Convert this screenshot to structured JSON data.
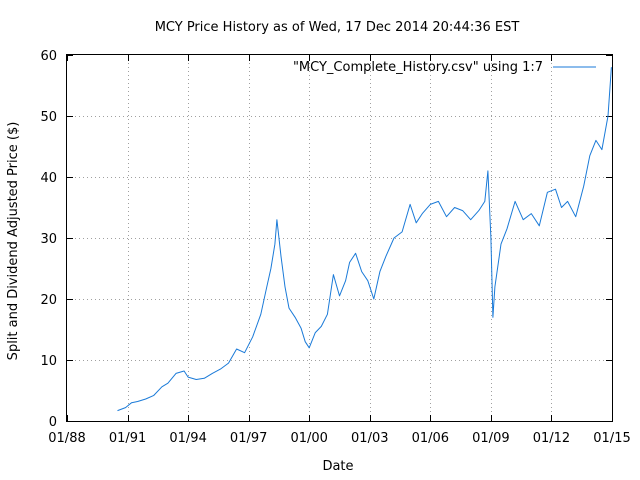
{
  "chart_data": {
    "type": "line",
    "title": "MCY Price History as of Wed, 17 Dec 2014 20:44:36 EST",
    "xlabel": "Date",
    "ylabel": "Split and Dividend Adjusted Price ($)",
    "xlim": [
      1988.0,
      2015.0
    ],
    "ylim": [
      0,
      60
    ],
    "y_ticks": [
      0,
      10,
      20,
      30,
      40,
      50,
      60
    ],
    "x_ticks": [
      {
        "value": 1988,
        "label": "01/88"
      },
      {
        "value": 1991,
        "label": "01/91"
      },
      {
        "value": 1994,
        "label": "01/94"
      },
      {
        "value": 1997,
        "label": "01/97"
      },
      {
        "value": 2000,
        "label": "01/00"
      },
      {
        "value": 2003,
        "label": "01/03"
      },
      {
        "value": 2006,
        "label": "01/06"
      },
      {
        "value": 2009,
        "label": "01/09"
      },
      {
        "value": 2012,
        "label": "01/12"
      },
      {
        "value": 2015,
        "label": "01/15"
      }
    ],
    "grid": true,
    "legend": {
      "position": "top-right",
      "label": "\"MCY_Complete_History.csv\" using 1:7"
    },
    "series": [
      {
        "name": "\"MCY_Complete_History.csv\" using 1:7",
        "color": "#1a7ad8",
        "x": [
          1990.5,
          1990.9,
          1991.2,
          1991.5,
          1991.9,
          1992.3,
          1992.7,
          1993.0,
          1993.4,
          1993.8,
          1994.0,
          1994.4,
          1994.8,
          1995.2,
          1995.6,
          1996.0,
          1996.4,
          1996.8,
          1997.2,
          1997.6,
          1997.9,
          1998.1,
          1998.3,
          1998.4,
          1998.6,
          1998.8,
          1999.0,
          1999.3,
          1999.6,
          1999.8,
          2000.0,
          2000.3,
          2000.6,
          2000.9,
          2001.2,
          2001.5,
          2001.8,
          2002.0,
          2002.3,
          2002.6,
          2002.9,
          2003.2,
          2003.5,
          2003.8,
          2004.2,
          2004.6,
          2005.0,
          2005.3,
          2005.6,
          2006.0,
          2006.4,
          2006.8,
          2007.2,
          2007.6,
          2008.0,
          2008.4,
          2008.7,
          2008.85,
          2009.0,
          2009.1,
          2009.2,
          2009.5,
          2009.8,
          2010.2,
          2010.6,
          2011.0,
          2011.4,
          2011.8,
          2012.2,
          2012.5,
          2012.8,
          2013.2,
          2013.6,
          2013.9,
          2014.2,
          2014.5,
          2014.8,
          2014.97
        ],
        "y": [
          1.7,
          2.2,
          3.0,
          3.2,
          3.6,
          4.2,
          5.6,
          6.2,
          7.8,
          8.2,
          7.2,
          6.8,
          7.0,
          7.8,
          8.5,
          9.5,
          11.8,
          11.2,
          13.8,
          17.5,
          22.0,
          25.0,
          29.0,
          33.0,
          27.0,
          22.0,
          18.5,
          17.0,
          15.2,
          13.0,
          12.0,
          14.5,
          15.5,
          17.5,
          24.0,
          20.5,
          23.0,
          26.0,
          27.5,
          24.5,
          23.0,
          20.0,
          24.5,
          27.0,
          30.0,
          31.0,
          35.5,
          32.5,
          34.0,
          35.5,
          36.0,
          33.5,
          35.0,
          34.5,
          33.0,
          34.5,
          36.0,
          41.0,
          30.0,
          17.0,
          22.0,
          29.0,
          31.5,
          36.0,
          33.0,
          34.0,
          32.0,
          37.5,
          38.0,
          35.0,
          36.0,
          33.5,
          38.5,
          43.5,
          46.0,
          44.5,
          50.0,
          58.0
        ]
      }
    ]
  }
}
